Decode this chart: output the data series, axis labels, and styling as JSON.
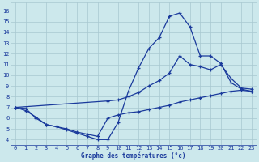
{
  "title": "Graphe des températures (°c)",
  "bg_color": "#cce8ec",
  "line_color": "#1a3a9c",
  "grid_color": "#a8c8d0",
  "ylim": [
    3.5,
    16.8
  ],
  "xlim": [
    -0.5,
    23.5
  ],
  "yticks": [
    4,
    5,
    6,
    7,
    8,
    9,
    10,
    11,
    12,
    13,
    14,
    15,
    16
  ],
  "xticks": [
    0,
    1,
    2,
    3,
    4,
    5,
    6,
    7,
    8,
    9,
    10,
    11,
    12,
    13,
    14,
    15,
    16,
    17,
    18,
    19,
    20,
    21,
    22,
    23
  ],
  "line1_x": [
    0,
    1,
    2,
    3,
    4,
    5,
    6,
    7,
    8,
    9,
    10,
    11,
    12,
    13,
    14,
    15,
    16,
    17,
    18,
    19,
    20,
    21,
    22,
    23
  ],
  "line1_y": [
    7.0,
    6.7,
    6.1,
    5.4,
    5.2,
    4.9,
    4.6,
    4.3,
    4.0,
    4.0,
    5.6,
    8.5,
    10.7,
    12.5,
    13.5,
    15.5,
    15.8,
    14.5,
    11.8,
    11.8,
    11.1,
    9.3,
    8.7,
    8.5
  ],
  "line2_x": [
    0,
    9,
    10,
    11,
    12,
    13,
    14,
    15,
    16,
    17,
    18,
    19,
    20,
    21,
    22,
    23
  ],
  "line2_y": [
    7.0,
    7.6,
    7.7,
    8.0,
    8.4,
    9.0,
    9.5,
    10.2,
    11.8,
    11.0,
    10.8,
    10.5,
    11.0,
    9.7,
    8.8,
    8.7
  ],
  "line3_x": [
    0,
    1,
    2,
    3,
    4,
    5,
    6,
    7,
    8,
    9,
    10,
    11,
    12,
    13,
    14,
    15,
    16,
    17,
    18,
    19,
    20,
    21,
    22,
    23
  ],
  "line3_y": [
    7.0,
    6.9,
    6.0,
    5.4,
    5.2,
    5.0,
    4.7,
    4.5,
    4.3,
    6.0,
    6.3,
    6.5,
    6.6,
    6.8,
    7.0,
    7.2,
    7.5,
    7.7,
    7.9,
    8.1,
    8.3,
    8.5,
    8.6,
    8.5
  ]
}
